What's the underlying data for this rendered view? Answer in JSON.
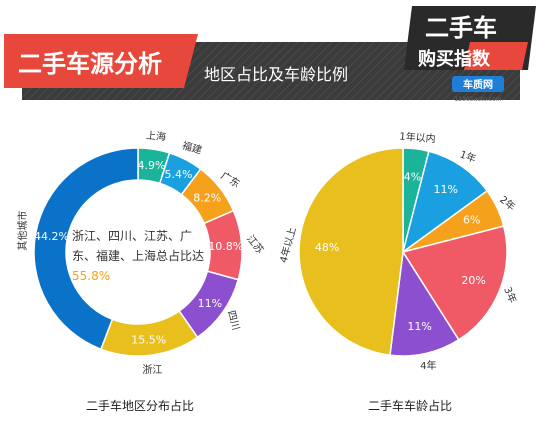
{
  "header": {
    "title": "二手车源分析",
    "subtitle": "地区占比及车龄比例",
    "logo_text": "二手车",
    "logo_text2": "购买指数",
    "logo_brand": "车质网",
    "logo_url": "12365auto.com"
  },
  "chart_data": [
    {
      "type": "donut",
      "caption": "二手车地区分布占比",
      "center_text": "浙江、四川、江苏、广东、福建、上海总占比达",
      "center_value": "55.8%",
      "slices": [
        {
          "label": "上海",
          "value": 4.9,
          "display": "4.9%",
          "color": "#1bb39a"
        },
        {
          "label": "福建",
          "value": 5.4,
          "display": "5.4%",
          "color": "#1aa0e0"
        },
        {
          "label": "广东",
          "value": 8.2,
          "display": "8.2%",
          "color": "#f5a11c"
        },
        {
          "label": "江苏",
          "value": 10.8,
          "display": "10.8%",
          "color": "#ef5a66"
        },
        {
          "label": "四川",
          "value": 11,
          "display": "11%",
          "color": "#8c4fd0"
        },
        {
          "label": "浙江",
          "value": 15.5,
          "display": "15.5%",
          "color": "#e8bf1c"
        },
        {
          "label": "其他城市",
          "value": 44.2,
          "display": "44.2%",
          "color": "#0a72c8"
        }
      ]
    },
    {
      "type": "pie",
      "caption": "二手车车龄占比",
      "slices": [
        {
          "label": "1年以内",
          "value": 4,
          "display": "4%",
          "color": "#1bb39a"
        },
        {
          "label": "1年",
          "value": 11,
          "display": "11%",
          "color": "#1aa0e0"
        },
        {
          "label": "2年",
          "value": 6,
          "display": "6%",
          "color": "#f5a11c"
        },
        {
          "label": "3年",
          "value": 20,
          "display": "20%",
          "color": "#ef5a66"
        },
        {
          "label": "4年",
          "value": 11,
          "display": "11%",
          "color": "#8c4fd0"
        },
        {
          "label": "4年以上",
          "value": 48,
          "display": "48%",
          "color": "#e8bf1c"
        }
      ]
    }
  ],
  "colors": {
    "title_red": "#e8473b",
    "title_bar_dark": "#3d3d3d"
  }
}
